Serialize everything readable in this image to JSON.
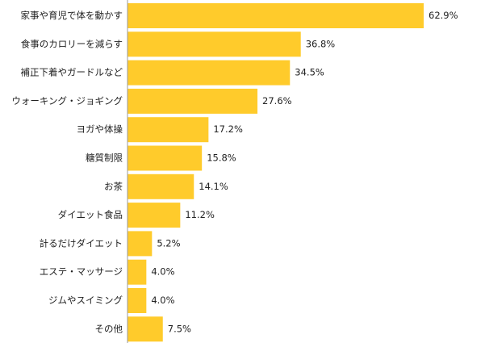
{
  "chart_data": {
    "type": "bar",
    "orientation": "horizontal",
    "categories": [
      "家事や育児で体を動かす",
      "食事のカロリーを減らす",
      "補正下着やガードルなど",
      "ウォーキング・ジョギング",
      "ヨガや体操",
      "糖質制限",
      "お茶",
      "ダイエット食品",
      "計るだけダイエット",
      "エステ・マッサージ",
      "ジムやスイミング",
      "その他"
    ],
    "values": [
      62.9,
      36.8,
      34.5,
      27.6,
      17.2,
      15.8,
      14.1,
      11.2,
      5.2,
      4.0,
      4.0,
      7.5
    ],
    "value_labels": [
      "62.9%",
      "36.8%",
      "34.5%",
      "27.6%",
      "17.2%",
      "15.8%",
      "14.1%",
      "11.2%",
      "5.2%",
      "4.0%",
      "4.0%",
      "7.5%"
    ],
    "unit": "%",
    "xlim": [
      0,
      62.9
    ],
    "grid": false,
    "legend": "none",
    "bar_color": "#FFCB2B",
    "axis_color": "#999999",
    "text_color": "#222222"
  }
}
